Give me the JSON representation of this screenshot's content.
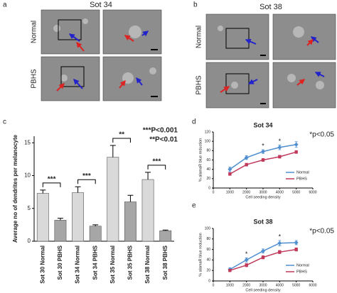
{
  "panels": [
    {
      "label": "a",
      "title": "Sot 34",
      "rows": [
        "Normal",
        "PBHS"
      ]
    },
    {
      "label": "b",
      "title": "Sot 38",
      "rows": [
        "Normal",
        "PBHS"
      ]
    }
  ],
  "chart_data": [
    {
      "type": "bar",
      "panel_label": "c",
      "ylabel": "Average no of dendrites per melanocyte",
      "categories": [
        "Sot 30 Normal",
        "Sot 30 PBHS",
        "Sot 34 Normal",
        "Sot 34 PBHS",
        "Sot 35 Normal",
        "Sot 35 PBHS",
        "Sot 38 Normal",
        "Sot 38 PBHS"
      ],
      "values": [
        7.3,
        3.2,
        7.4,
        2.3,
        12.8,
        6.0,
        9.4,
        1.6
      ],
      "errors": [
        0.5,
        0.3,
        0.9,
        0.2,
        1.8,
        1.0,
        1.1,
        0.1
      ],
      "colors": [
        "#d9d9d9",
        "#a6a6a6",
        "#d9d9d9",
        "#a6a6a6",
        "#d9d9d9",
        "#a6a6a6",
        "#d9d9d9",
        "#a6a6a6"
      ],
      "significance_labels": [
        "***",
        "***",
        "**",
        "***"
      ],
      "annotations": [
        "***P<0.001",
        "**P<0.01"
      ],
      "ylim": [
        0,
        16
      ],
      "yticks": [
        0,
        5,
        10,
        15
      ]
    },
    {
      "type": "line",
      "panel_label": "d",
      "title": "Sot 34",
      "xlabel": "Cell seeding density",
      "ylabel": "% alamaR blue reduction",
      "x": [
        1000,
        2000,
        3000,
        4000,
        5000
      ],
      "series": [
        {
          "name": "Normal",
          "color": "#4f8fd0",
          "marker": "diamond",
          "values": [
            40,
            65,
            78,
            87,
            93
          ],
          "errors": [
            5,
            4,
            4,
            5,
            6
          ]
        },
        {
          "name": "PBHS",
          "color": "#c0395a",
          "marker": "square",
          "values": [
            30,
            50,
            60,
            67,
            77
          ],
          "errors": [
            3,
            3,
            3,
            3,
            3
          ]
        }
      ],
      "point_labels": [
        null,
        null,
        "*",
        "*",
        null
      ],
      "annotations": [
        "*p<0.05"
      ],
      "legend": "lower right",
      "xlim": [
        0,
        6000
      ],
      "xticks": [
        0,
        1000,
        2000,
        3000,
        4000,
        5000,
        6000
      ],
      "ylim": [
        0,
        120
      ],
      "yticks": [
        0,
        20,
        40,
        60,
        80,
        100,
        120
      ]
    },
    {
      "type": "line",
      "panel_label": "e",
      "title": "Sot 38",
      "xlabel": "Cell seeding density",
      "ylabel": "% alamaR blue reduction",
      "x": [
        1000,
        2000,
        3000,
        4000,
        5000
      ],
      "series": [
        {
          "name": "Normal",
          "color": "#4f8fd0",
          "marker": "diamond",
          "values": [
            22,
            40,
            57,
            72,
            73
          ],
          "errors": [
            3,
            4,
            4,
            5,
            4
          ]
        },
        {
          "name": "PBHS",
          "color": "#c0395a",
          "marker": "square",
          "values": [
            20,
            30,
            45,
            55,
            60
          ],
          "errors": [
            2,
            3,
            3,
            3,
            3
          ]
        }
      ],
      "point_labels": [
        null,
        "*",
        null,
        "*",
        null
      ],
      "annotations": [
        "*p<0.05"
      ],
      "legend": "lower right",
      "xlim": [
        0,
        6000
      ],
      "xticks": [
        0,
        1000,
        2000,
        3000,
        4000,
        5000,
        6000
      ],
      "ylim": [
        0,
        100
      ],
      "yticks": [
        0,
        20,
        40,
        60,
        80,
        100
      ]
    }
  ]
}
